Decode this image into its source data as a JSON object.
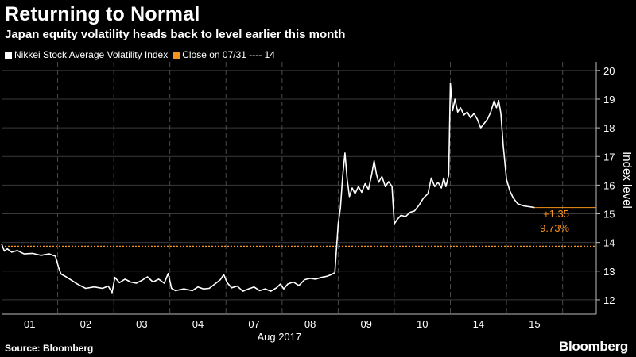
{
  "header": {
    "title": "Returning to Normal",
    "subtitle": "Japan equity volatility heads back to level earlier this month"
  },
  "legend": [
    {
      "label": "Nikkei Stock Average Volatility Index",
      "color": "#ffffff"
    },
    {
      "label": "Close on 07/31 ---- 14",
      "color": "#f7941d"
    }
  ],
  "footer": {
    "source": "Source: Bloomberg",
    "brand": "Bloomberg"
  },
  "chart_data": {
    "type": "line",
    "ylabel": "Index level",
    "ylim": [
      11.5,
      20.3
    ],
    "yticks": [
      12,
      13,
      14,
      15,
      16,
      17,
      18,
      19,
      20
    ],
    "xlim": [
      0,
      10.6
    ],
    "xtick_labels": [
      {
        "label": "01",
        "pos": 0.5
      },
      {
        "label": "02",
        "pos": 1.5
      },
      {
        "label": "03",
        "pos": 2.5
      },
      {
        "label": "04",
        "pos": 3.5
      },
      {
        "label": "07",
        "pos": 4.5
      },
      {
        "label": "08",
        "pos": 5.5
      },
      {
        "label": "09",
        "pos": 6.5
      },
      {
        "label": "10",
        "pos": 7.5
      },
      {
        "label": "14",
        "pos": 8.5
      },
      {
        "label": "15",
        "pos": 9.5
      }
    ],
    "day_dividers": [
      1,
      2,
      3,
      4,
      5,
      6,
      7,
      8,
      9,
      10
    ],
    "xlabel": "Aug 2017",
    "reference": {
      "value": 13.87,
      "color": "#f7941d",
      "style": "dotted"
    },
    "last_value": {
      "value": 15.22,
      "color": "#f7941d"
    },
    "annotation": {
      "change": "+1.35",
      "percent": "9.73%",
      "color": "#f7941d"
    },
    "series": [
      {
        "color": "#ffffff",
        "points": [
          [
            0.0,
            13.95
          ],
          [
            0.05,
            13.7
          ],
          [
            0.1,
            13.78
          ],
          [
            0.18,
            13.66
          ],
          [
            0.28,
            13.72
          ],
          [
            0.4,
            13.6
          ],
          [
            0.55,
            13.62
          ],
          [
            0.7,
            13.55
          ],
          [
            0.85,
            13.6
          ],
          [
            0.96,
            13.52
          ],
          [
            1.02,
            13.1
          ],
          [
            1.06,
            12.9
          ],
          [
            1.15,
            12.8
          ],
          [
            1.25,
            12.68
          ],
          [
            1.35,
            12.55
          ],
          [
            1.5,
            12.4
          ],
          [
            1.65,
            12.45
          ],
          [
            1.8,
            12.4
          ],
          [
            1.9,
            12.48
          ],
          [
            1.97,
            12.25
          ],
          [
            2.02,
            12.78
          ],
          [
            2.1,
            12.6
          ],
          [
            2.2,
            12.72
          ],
          [
            2.3,
            12.62
          ],
          [
            2.4,
            12.58
          ],
          [
            2.5,
            12.68
          ],
          [
            2.6,
            12.8
          ],
          [
            2.7,
            12.62
          ],
          [
            2.8,
            12.72
          ],
          [
            2.9,
            12.58
          ],
          [
            2.97,
            12.92
          ],
          [
            3.03,
            12.4
          ],
          [
            3.1,
            12.32
          ],
          [
            3.25,
            12.38
          ],
          [
            3.4,
            12.32
          ],
          [
            3.5,
            12.45
          ],
          [
            3.6,
            12.38
          ],
          [
            3.7,
            12.4
          ],
          [
            3.8,
            12.55
          ],
          [
            3.9,
            12.7
          ],
          [
            3.96,
            12.88
          ],
          [
            4.02,
            12.6
          ],
          [
            4.1,
            12.42
          ],
          [
            4.2,
            12.48
          ],
          [
            4.3,
            12.3
          ],
          [
            4.4,
            12.38
          ],
          [
            4.5,
            12.45
          ],
          [
            4.6,
            12.32
          ],
          [
            4.7,
            12.38
          ],
          [
            4.8,
            12.3
          ],
          [
            4.9,
            12.42
          ],
          [
            4.97,
            12.55
          ],
          [
            5.03,
            12.38
          ],
          [
            5.1,
            12.55
          ],
          [
            5.2,
            12.62
          ],
          [
            5.3,
            12.5
          ],
          [
            5.4,
            12.7
          ],
          [
            5.5,
            12.75
          ],
          [
            5.6,
            12.72
          ],
          [
            5.7,
            12.78
          ],
          [
            5.8,
            12.82
          ],
          [
            5.88,
            12.88
          ],
          [
            5.94,
            12.95
          ],
          [
            6.0,
            14.65
          ],
          [
            6.04,
            15.2
          ],
          [
            6.08,
            16.3
          ],
          [
            6.12,
            17.12
          ],
          [
            6.16,
            16.2
          ],
          [
            6.2,
            15.6
          ],
          [
            6.25,
            15.9
          ],
          [
            6.3,
            15.7
          ],
          [
            6.36,
            15.95
          ],
          [
            6.42,
            15.75
          ],
          [
            6.48,
            16.05
          ],
          [
            6.54,
            15.85
          ],
          [
            6.6,
            16.4
          ],
          [
            6.64,
            16.85
          ],
          [
            6.68,
            16.4
          ],
          [
            6.72,
            16.1
          ],
          [
            6.78,
            16.3
          ],
          [
            6.84,
            15.95
          ],
          [
            6.9,
            16.12
          ],
          [
            6.96,
            15.95
          ],
          [
            7.0,
            14.65
          ],
          [
            7.05,
            14.8
          ],
          [
            7.12,
            14.95
          ],
          [
            7.2,
            14.9
          ],
          [
            7.28,
            15.05
          ],
          [
            7.36,
            15.1
          ],
          [
            7.44,
            15.3
          ],
          [
            7.52,
            15.55
          ],
          [
            7.6,
            15.7
          ],
          [
            7.66,
            16.25
          ],
          [
            7.72,
            15.95
          ],
          [
            7.78,
            16.1
          ],
          [
            7.84,
            15.9
          ],
          [
            7.88,
            16.25
          ],
          [
            7.92,
            15.95
          ],
          [
            7.97,
            16.35
          ],
          [
            8.0,
            19.55
          ],
          [
            8.04,
            18.6
          ],
          [
            8.08,
            19.0
          ],
          [
            8.13,
            18.55
          ],
          [
            8.18,
            18.7
          ],
          [
            8.24,
            18.45
          ],
          [
            8.3,
            18.55
          ],
          [
            8.36,
            18.35
          ],
          [
            8.42,
            18.5
          ],
          [
            8.48,
            18.3
          ],
          [
            8.54,
            18.0
          ],
          [
            8.6,
            18.15
          ],
          [
            8.66,
            18.3
          ],
          [
            8.72,
            18.55
          ],
          [
            8.78,
            18.95
          ],
          [
            8.82,
            18.7
          ],
          [
            8.86,
            18.95
          ],
          [
            8.9,
            18.5
          ],
          [
            8.94,
            17.4
          ],
          [
            9.0,
            16.2
          ],
          [
            9.06,
            15.8
          ],
          [
            9.12,
            15.55
          ],
          [
            9.2,
            15.35
          ],
          [
            9.3,
            15.28
          ],
          [
            9.4,
            15.25
          ],
          [
            9.5,
            15.22
          ]
        ]
      }
    ]
  }
}
